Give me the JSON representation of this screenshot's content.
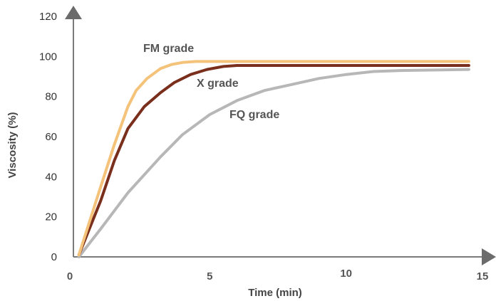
{
  "chart_data": {
    "type": "line",
    "xlabel": "Time (min)",
    "ylabel": "Viscosity (%)",
    "xlim": [
      0,
      15
    ],
    "ylim": [
      0,
      120
    ],
    "x_ticks": [
      "0",
      "5",
      "10",
      "15"
    ],
    "y_ticks": [
      "0",
      "20",
      "40",
      "60",
      "80",
      "100",
      "120"
    ],
    "grid": false,
    "legend": "none",
    "series": [
      {
        "name": "FM grade",
        "color": "#f5c27a",
        "points": [
          [
            0.2,
            1
          ],
          [
            1.0,
            35
          ],
          [
            1.5,
            56
          ],
          [
            2.0,
            75
          ],
          [
            2.3,
            83
          ],
          [
            2.7,
            89
          ],
          [
            3.2,
            94
          ],
          [
            3.6,
            96
          ],
          [
            4.0,
            97
          ],
          [
            4.5,
            97.5
          ],
          [
            5.5,
            97.5
          ],
          [
            14.5,
            97.5
          ]
        ]
      },
      {
        "name": "X grade",
        "color": "#7a2e1c",
        "points": [
          [
            0.2,
            1
          ],
          [
            1.0,
            28
          ],
          [
            1.5,
            48
          ],
          [
            2.0,
            64
          ],
          [
            2.6,
            75
          ],
          [
            3.2,
            82
          ],
          [
            3.7,
            87
          ],
          [
            4.3,
            91
          ],
          [
            4.9,
            93.5
          ],
          [
            5.5,
            95
          ],
          [
            6.0,
            95.5
          ],
          [
            14.5,
            95.5
          ]
        ]
      },
      {
        "name": "FQ grade",
        "color": "#b7b7b7",
        "points": [
          [
            0.2,
            0
          ],
          [
            1.0,
            14
          ],
          [
            2.0,
            32
          ],
          [
            3.2,
            50
          ],
          [
            4.0,
            61
          ],
          [
            5.0,
            71
          ],
          [
            6.0,
            78
          ],
          [
            7.0,
            83
          ],
          [
            8.0,
            86
          ],
          [
            9.0,
            89
          ],
          [
            10.0,
            91
          ],
          [
            11.0,
            92.5
          ],
          [
            12.0,
            93
          ],
          [
            14.5,
            93.5
          ]
        ]
      }
    ]
  }
}
